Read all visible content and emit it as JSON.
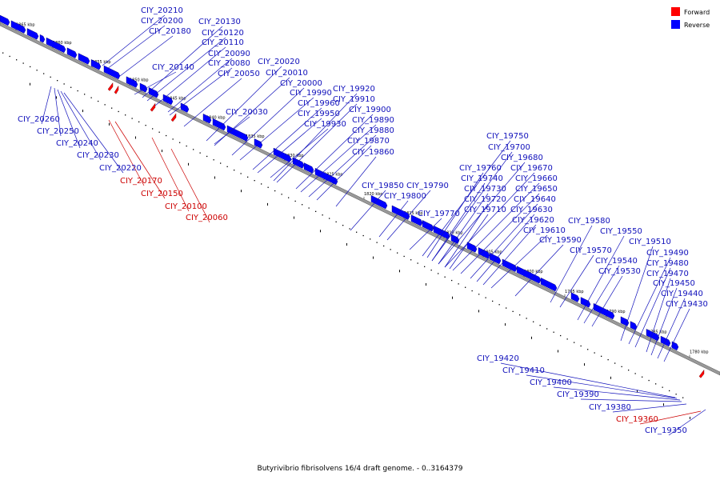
{
  "caption": "Butyrivibrio fibrisolvens 16/4 draft genome. - 0..3164379",
  "legend": [
    {
      "label": "Forward",
      "color": "#ff0000"
    },
    {
      "label": "Reverse",
      "color": "#0000ff"
    }
  ],
  "colors": {
    "forward": "#ff0000",
    "reverse": "#0000ff",
    "backbone": "#888888"
  },
  "ticks": [
    "1865 kbp",
    "1860 kbp",
    "1855 kbp",
    "1850 kbp",
    "1845 kbp",
    "1840 kbp",
    "1835 kbp",
    "1830 kbp",
    "1825 kbp",
    "1820 kbp",
    "1815 kbp",
    "1810 kbp",
    "1805 kbp",
    "1800 kbp",
    "1795 kbp",
    "1790 kbp",
    "1785 kbp",
    "1780 kbp"
  ],
  "labels": {
    "CIY_20210": "CIY_20210",
    "CIY_20200": "CIY_20200",
    "CIY_20180": "CIY_20180",
    "CIY_20130": "CIY_20130",
    "CIY_20120": "CIY_20120",
    "CIY_20110": "CIY_20110",
    "CIY_20090": "CIY_20090",
    "CIY_20080": "CIY_20080",
    "CIY_20050": "CIY_20050",
    "CIY_20140": "CIY_20140",
    "CIY_20020": "CIY_20020",
    "CIY_20010": "CIY_20010",
    "CIY_20000": "CIY_20000",
    "CIY_19990": "CIY_19990",
    "CIY_19920": "CIY_19920",
    "CIY_19910": "CIY_19910",
    "CIY_19960": "CIY_19960",
    "CIY_19950": "CIY_19950",
    "CIY_19900": "CIY_19900",
    "CIY_20030": "CIY_20030",
    "CIY_19890": "CIY_19890",
    "CIY_19930": "CIY_19930",
    "CIY_19880": "CIY_19880",
    "CIY_19870": "CIY_19870",
    "CIY_19860": "CIY_19860",
    "CIY_20260": "CIY_20260",
    "CIY_20250": "CIY_20250",
    "CIY_20240": "CIY_20240",
    "CIY_20230": "CIY_20230",
    "CIY_20220": "CIY_20220",
    "CIY_20170": "CIY_20170",
    "CIY_20150": "CIY_20150",
    "CIY_20100": "CIY_20100",
    "CIY_20060": "CIY_20060",
    "CIY_19850": "CIY_19850",
    "CIY_19790": "CIY_19790",
    "CIY_19800": "CIY_19800",
    "CIY_19770": "CIY_19770",
    "CIY_19750": "CIY_19750",
    "CIY_19700": "CIY_19700",
    "CIY_19680": "CIY_19680",
    "CIY_19760": "CIY_19760",
    "CIY_19670": "CIY_19670",
    "CIY_19740": "CIY_19740",
    "CIY_19660": "CIY_19660",
    "CIY_19730": "CIY_19730",
    "CIY_19650": "CIY_19650",
    "CIY_19720": "CIY_19720",
    "CIY_19640": "CIY_19640",
    "CIY_19710": "CIY_19710",
    "CIY_19630": "CIY_19630",
    "CIY_19620": "CIY_19620",
    "CIY_19610": "CIY_19610",
    "CIY_19590": "CIY_19590",
    "CIY_19580": "CIY_19580",
    "CIY_19550": "CIY_19550",
    "CIY_19510": "CIY_19510",
    "CIY_19570": "CIY_19570",
    "CIY_19490": "CIY_19490",
    "CIY_19540": "CIY_19540",
    "CIY_19480": "CIY_19480",
    "CIY_19530": "CIY_19530",
    "CIY_19470": "CIY_19470",
    "CIY_19450": "CIY_19450",
    "CIY_19440": "CIY_19440",
    "CIY_19430": "CIY_19430",
    "CIY_19420": "CIY_19420",
    "CIY_19410": "CIY_19410",
    "CIY_19400": "CIY_19400",
    "CIY_19390": "CIY_19390",
    "CIY_19380": "CIY_19380",
    "CIY_19360": "CIY_19360",
    "CIY_19350": "CIY_19350"
  }
}
